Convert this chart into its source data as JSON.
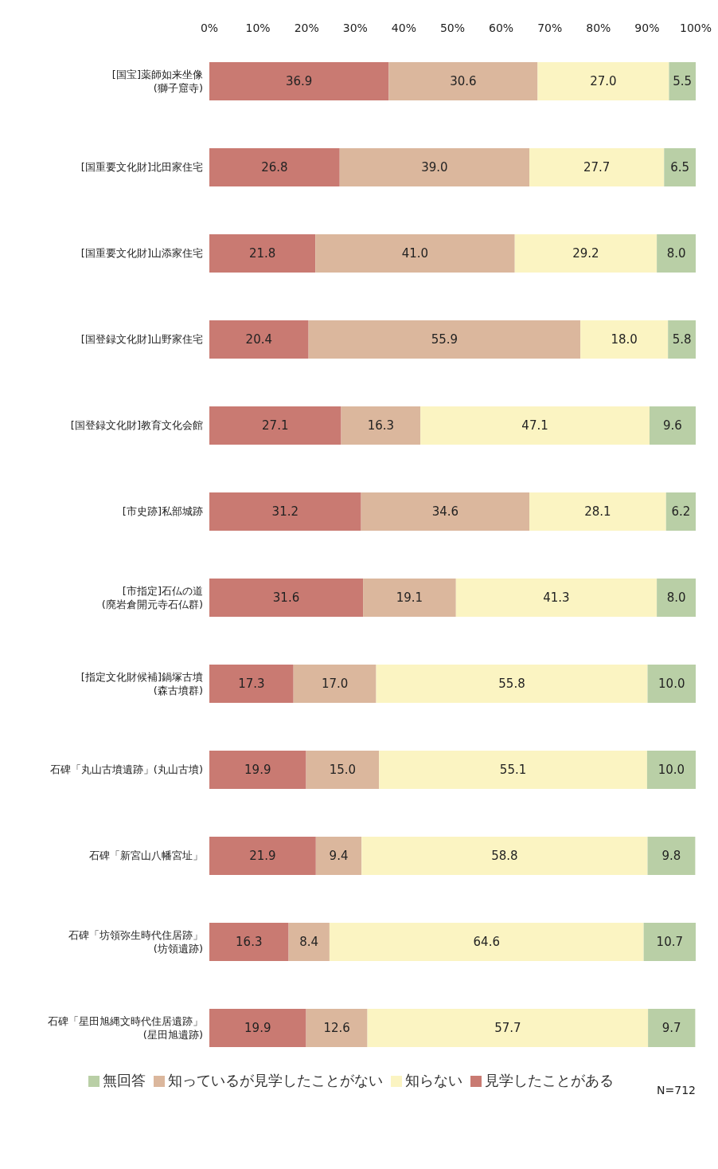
{
  "chart_data": {
    "type": "bar",
    "orientation": "horizontal",
    "stacked": true,
    "categories": [
      "[国宝]薬師如来坐像\n(獅子窟寺)",
      "[国重要文化財]北田家住宅",
      "[国重要文化財]山添家住宅",
      "[国登録文化財]山野家住宅",
      "[国登録文化財]教育文化会館",
      "[市史跡]私部城跡",
      "[市指定]石仏の道\n(廃岩倉開元寺石仏群)",
      "[指定文化財候補]鍋塚古墳\n(森古墳群)",
      "石碑「丸山古墳遺跡」(丸山古墳)",
      "石碑「新宮山八幡宮址」",
      "石碑「坊領弥生時代住居跡」\n(坊領遺跡)",
      "石碑「星田旭縄文時代住居遺跡」\n(星田旭遺跡)"
    ],
    "series": [
      {
        "name": "見学したことがある",
        "color": "#c97a72",
        "values": [
          36.9,
          26.8,
          21.8,
          20.4,
          27.1,
          31.2,
          31.6,
          17.3,
          19.9,
          21.9,
          16.3,
          19.9
        ],
        "value_labels": [
          "36.9",
          "26.8",
          "21.8",
          "20.4",
          "27.1",
          "31.2",
          "31.6",
          "17.3",
          "19.9",
          "21.9",
          "16.3",
          "19.9"
        ]
      },
      {
        "name": "知っているが見学したことがない",
        "color": "#dbb79d",
        "values": [
          30.6,
          39.0,
          41.0,
          55.9,
          16.3,
          34.6,
          19.1,
          17.0,
          15.0,
          9.4,
          8.4,
          12.6
        ],
        "value_labels": [
          "30.6",
          "39.0",
          "41.0",
          "55.9",
          "16.3",
          "34.6",
          "19.1",
          "17.0",
          "15.0",
          "9.4",
          "8.4",
          "12.6"
        ]
      },
      {
        "name": "知らない",
        "color": "#fbf4c2",
        "values": [
          27.0,
          27.7,
          29.2,
          18.0,
          47.1,
          28.1,
          41.3,
          55.8,
          55.1,
          58.8,
          64.6,
          57.7
        ],
        "value_labels": [
          "27.0",
          "27.7",
          "29.2",
          "18.0",
          "47.1",
          "28.1",
          "41.3",
          "55.8",
          "55.1",
          "58.8",
          "64.6",
          "57.7"
        ]
      },
      {
        "name": "無回答",
        "color": "#b9cfa6",
        "values": [
          5.5,
          6.5,
          8.0,
          5.8,
          9.6,
          6.2,
          8.0,
          10.0,
          10.0,
          9.8,
          10.7,
          9.7
        ],
        "value_labels": [
          "5.5",
          "6.5",
          "8.0",
          "5.8",
          "9.6",
          "6.2",
          "8.0",
          "10.0",
          "10.0",
          "9.8",
          "10.7",
          "9.7"
        ]
      }
    ],
    "xlim": [
      0,
      100
    ],
    "xticks": [
      {
        "value": 0,
        "label": "0%"
      },
      {
        "value": 10,
        "label": "10%"
      },
      {
        "value": 20,
        "label": "20%"
      },
      {
        "value": 30,
        "label": "30%"
      },
      {
        "value": 40,
        "label": "40%"
      },
      {
        "value": 50,
        "label": "50%"
      },
      {
        "value": 60,
        "label": "60%"
      },
      {
        "value": 70,
        "label": "70%"
      },
      {
        "value": 80,
        "label": "80%"
      },
      {
        "value": 90,
        "label": "90%"
      },
      {
        "value": 100,
        "label": "100%"
      }
    ],
    "annotations": [
      "N=712"
    ],
    "legend": "bottom",
    "grid": false
  }
}
